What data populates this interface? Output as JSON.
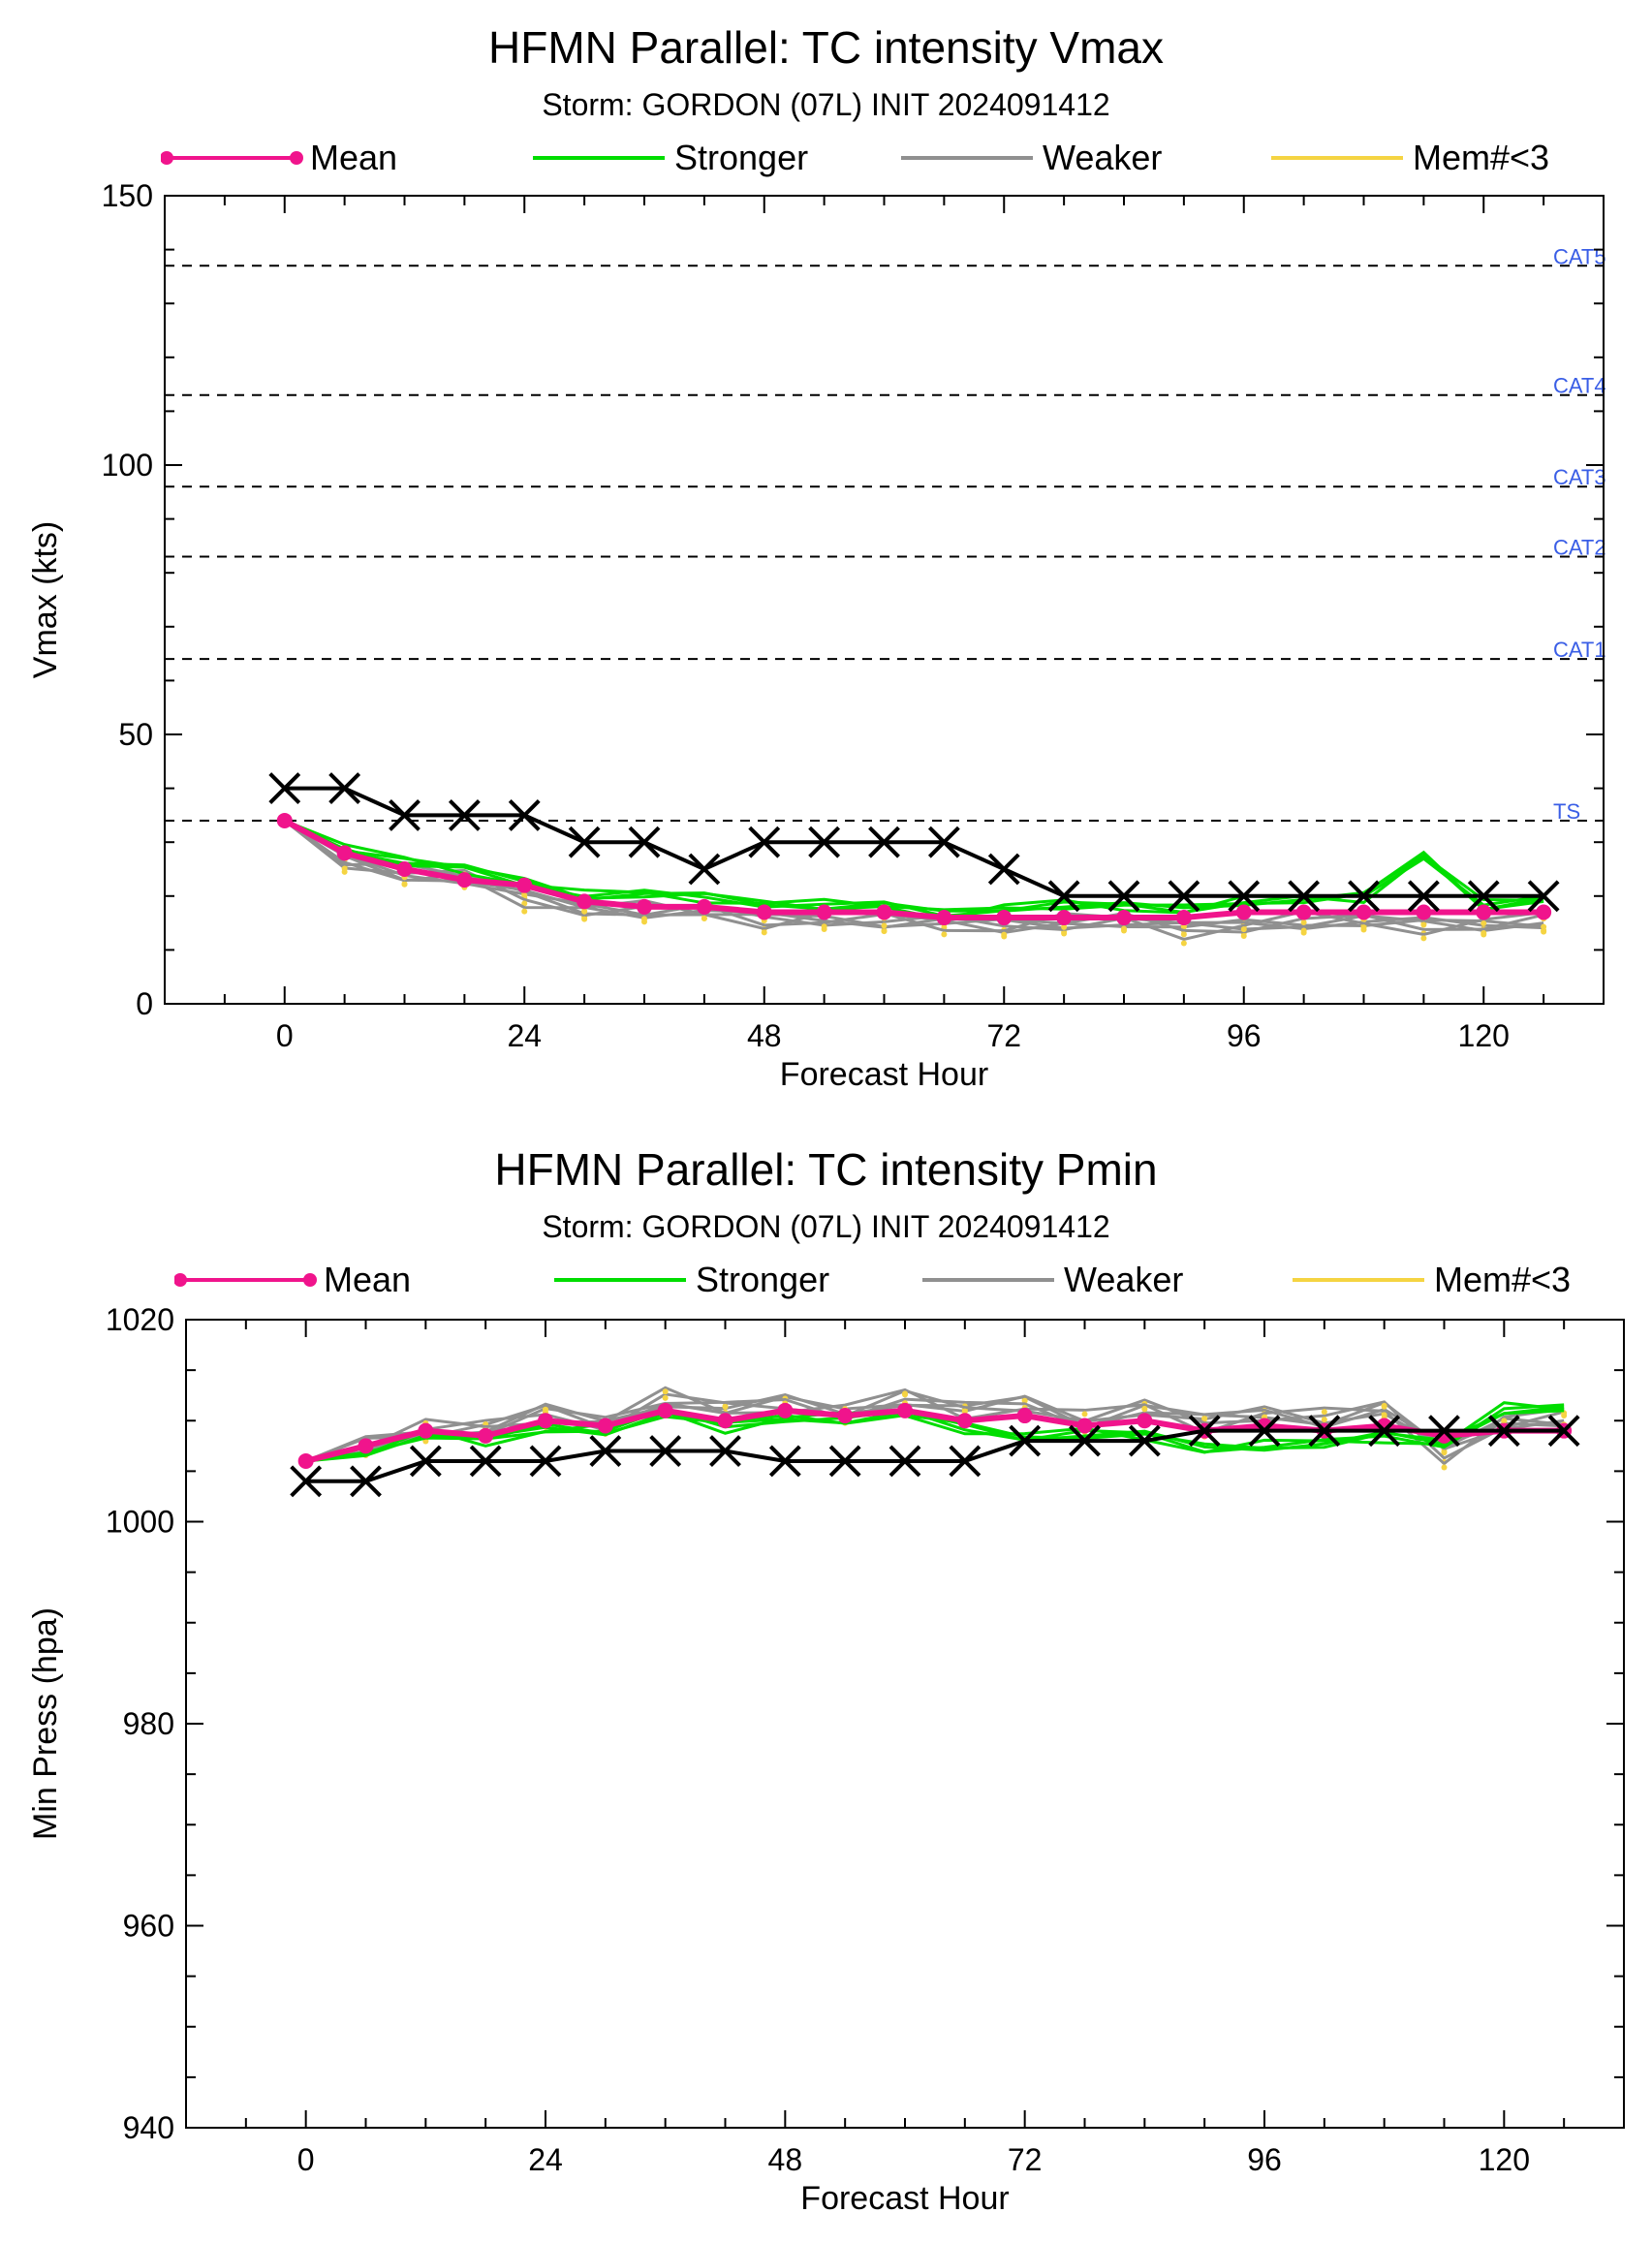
{
  "chart_data": [
    {
      "type": "line",
      "title": "HFMN Parallel: TC intensity Vmax",
      "subtitle": "Storm: GORDON (07L) INIT 2024091412",
      "xlabel": "Forecast Hour",
      "ylabel": "Vmax (kts)",
      "xlim": [
        -12,
        132
      ],
      "ylim": [
        0,
        150
      ],
      "xticks": [
        0,
        24,
        48,
        72,
        96,
        120
      ],
      "yticks": [
        0,
        50,
        100,
        150
      ],
      "legend": [
        "Mean",
        "Stronger",
        "Weaker",
        "Mem#<3"
      ],
      "legend_position": "top",
      "colors": {
        "mean": "#f0148c",
        "stronger": "#00dd00",
        "weaker": "#909090",
        "few_members": "#f5d442",
        "best_track": "#000000",
        "category_label": "#3a5ee6"
      },
      "reference_lines": [
        {
          "label": "CAT5",
          "y": 137
        },
        {
          "label": "CAT4",
          "y": 113
        },
        {
          "label": "CAT3",
          "y": 96
        },
        {
          "label": "CAT2",
          "y": 83
        },
        {
          "label": "CAT1",
          "y": 64
        },
        {
          "label": "TS",
          "y": 34
        }
      ],
      "x": [
        0,
        6,
        12,
        18,
        24,
        30,
        36,
        42,
        48,
        54,
        60,
        66,
        72,
        78,
        84,
        90,
        96,
        102,
        108,
        114,
        120,
        126
      ],
      "series": [
        {
          "name": "Mean",
          "values": [
            34,
            28,
            25,
            23,
            22,
            19,
            18,
            18,
            17,
            17,
            17,
            16,
            16,
            16,
            16,
            16,
            17,
            17,
            17,
            17,
            17,
            17
          ]
        },
        {
          "name": "Stronger",
          "values": [
            34,
            29,
            26,
            25,
            23,
            20,
            20,
            20,
            19,
            18,
            18,
            17,
            18,
            18,
            18,
            18,
            19,
            19,
            20,
            28,
            18,
            19
          ]
        },
        {
          "name": "Weaker",
          "values": [
            34,
            27,
            24,
            23,
            20,
            18,
            17,
            17,
            16,
            16,
            15,
            15,
            15,
            15,
            15,
            14,
            15,
            15,
            15,
            15,
            15,
            15
          ]
        },
        {
          "values": [
            40,
            40,
            35,
            35,
            35,
            30,
            30,
            25,
            30,
            30,
            30,
            30,
            25,
            20,
            20,
            20,
            20,
            20,
            20,
            20,
            20,
            20
          ]
        }
      ]
    },
    {
      "type": "line",
      "title": "HFMN Parallel: TC intensity Pmin",
      "subtitle": "Storm: GORDON (07L) INIT 2024091412",
      "xlabel": "Forecast Hour",
      "ylabel": "Min Press (hpa)",
      "xlim": [
        -12,
        132
      ],
      "ylim": [
        940,
        1020
      ],
      "xticks": [
        0,
        24,
        48,
        72,
        96,
        120
      ],
      "yticks": [
        940,
        960,
        980,
        1000,
        1020
      ],
      "legend": [
        "Mean",
        "Stronger",
        "Weaker",
        "Mem#<3"
      ],
      "legend_position": "top",
      "x": [
        0,
        6,
        12,
        18,
        24,
        30,
        36,
        42,
        48,
        54,
        60,
        66,
        72,
        78,
        84,
        90,
        96,
        102,
        108,
        114,
        120,
        126
      ],
      "series": [
        {
          "name": "Mean",
          "values": [
            1006,
            1007.5,
            1009,
            1008.5,
            1010,
            1009.5,
            1011,
            1010,
            1011,
            1010.5,
            1011,
            1010,
            1010.5,
            1009.5,
            1010,
            1009,
            1009.5,
            1009,
            1009.5,
            1008.5,
            1009,
            1009
          ]
        },
        {
          "name": "Stronger",
          "values": [
            1006,
            1007,
            1008.5,
            1008,
            1009.5,
            1009,
            1010.5,
            1009.5,
            1010.5,
            1010,
            1010.5,
            1009.5,
            1008.5,
            1008.5,
            1008.5,
            1007.5,
            1007.5,
            1007.5,
            1008.5,
            1008,
            1011,
            1011
          ]
        },
        {
          "name": "Weaker",
          "values": [
            1006,
            1008,
            1009,
            1009,
            1011,
            1010,
            1012,
            1011,
            1012,
            1011,
            1012,
            1011,
            1012,
            1010,
            1011,
            1010,
            1011,
            1010,
            1011,
            1007,
            1010,
            1010
          ]
        },
        {
          "values": [
            1004,
            1004,
            1006,
            1006,
            1006,
            1007,
            1007,
            1007,
            1006,
            1006,
            1006,
            1006,
            1008,
            1008,
            1008,
            1009,
            1009,
            1009,
            1009,
            1009,
            1009,
            1009
          ]
        }
      ]
    }
  ]
}
